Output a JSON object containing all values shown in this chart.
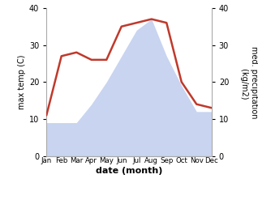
{
  "months": [
    "Jan",
    "Feb",
    "Mar",
    "Apr",
    "May",
    "Jun",
    "Jul",
    "Aug",
    "Sep",
    "Oct",
    "Nov",
    "Dec"
  ],
  "temperature": [
    9,
    9,
    9,
    14,
    20,
    27,
    34,
    37,
    27,
    19,
    12,
    12
  ],
  "precipitation": [
    11,
    27,
    28,
    26,
    26,
    35,
    36,
    37,
    36,
    20,
    14,
    13
  ],
  "precip_color": "#c0392b",
  "temp_fill_color": "#c8d4f0",
  "ylim": [
    0,
    40
  ],
  "xlabel": "date (month)",
  "ylabel_left": "max temp (C)",
  "ylabel_right": "med. precipitation\n (kg/m2)",
  "background_color": "#ffffff",
  "yticks": [
    0,
    10,
    20,
    30,
    40
  ]
}
